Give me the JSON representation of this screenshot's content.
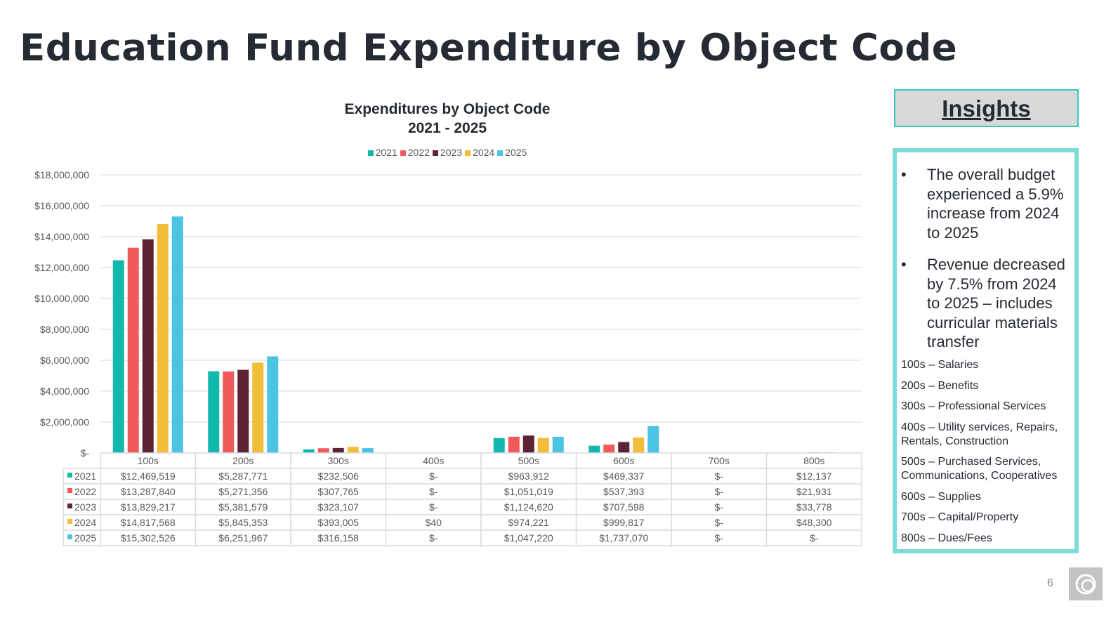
{
  "title": "Education Fund Expenditure by Object Code",
  "chart_data": {
    "type": "bar",
    "title": "Expenditures by Object Code",
    "subtitle": "2021 - 2025",
    "categories": [
      "100s",
      "200s",
      "300s",
      "400s",
      "500s",
      "600s",
      "700s",
      "800s"
    ],
    "ylim": [
      0,
      18000000
    ],
    "yticks": [
      "$-",
      "$2,000,000",
      "$4,000,000",
      "$6,000,000",
      "$8,000,000",
      "$10,000,000",
      "$12,000,000",
      "$14,000,000",
      "$16,000,000",
      "$18,000,000"
    ],
    "grid": true,
    "legend_position": "top",
    "series": [
      {
        "name": "2021",
        "color": "#13b8ac",
        "values": [
          12469519,
          5287771,
          232506,
          0,
          963912,
          469337,
          0,
          12137
        ],
        "labels": [
          "$12,469,519",
          "$5,287,771",
          "$232,506",
          "$-",
          "$963,912",
          "$469,337",
          "$-",
          "$12,137"
        ]
      },
      {
        "name": "2022",
        "color": "#f05a5b",
        "values": [
          13287840,
          5271356,
          307765,
          0,
          1051019,
          537393,
          0,
          21931
        ],
        "labels": [
          "$13,287,840",
          "$5,271,356",
          "$307,765",
          "$-",
          "$1,051,019",
          "$537,393",
          "$-",
          "$21,931"
        ]
      },
      {
        "name": "2023",
        "color": "#5c2333",
        "values": [
          13829217,
          5381579,
          323107,
          0,
          1124620,
          707598,
          0,
          33778
        ],
        "labels": [
          "$13,829,217",
          "$5,381,579",
          "$323,107",
          "$-",
          "$1,124,620",
          "$707,598",
          "$-",
          "$33,778"
        ]
      },
      {
        "name": "2024",
        "color": "#f2bd38",
        "values": [
          14817568,
          5845353,
          393005,
          40,
          974221,
          999817,
          0,
          48300
        ],
        "labels": [
          "$14,817,568",
          "$5,845,353",
          "$393,005",
          "$40",
          "$974,221",
          "$999,817",
          "$-",
          "$48,300"
        ]
      },
      {
        "name": "2025",
        "color": "#4dc3e3",
        "values": [
          15302526,
          6251967,
          316158,
          0,
          1047220,
          1737070,
          0,
          0
        ],
        "labels": [
          "$15,302,526",
          "$6,251,967",
          "$316,158",
          "$-",
          "$1,047,220",
          "$1,737,070",
          "$-",
          "$-"
        ]
      }
    ]
  },
  "insights": {
    "heading": "Insights",
    "bullets": [
      "The overall budget experienced a 5.9% increase from 2024 to 2025",
      "Revenue decreased by 7.5% from 2024 to 2025 – includes curricular materials transfer"
    ],
    "codes": [
      "100s – Salaries",
      "200s – Benefits",
      "300s – Professional Services",
      "400s – Utility services, Repairs, Rentals, Construction",
      "500s – Purchased Services, Communications, Cooperatives",
      "600s – Supplies",
      "700s – Capital/Property",
      "800s – Dues/Fees"
    ]
  },
  "page_number": "6",
  "bullet_glyph": "•"
}
